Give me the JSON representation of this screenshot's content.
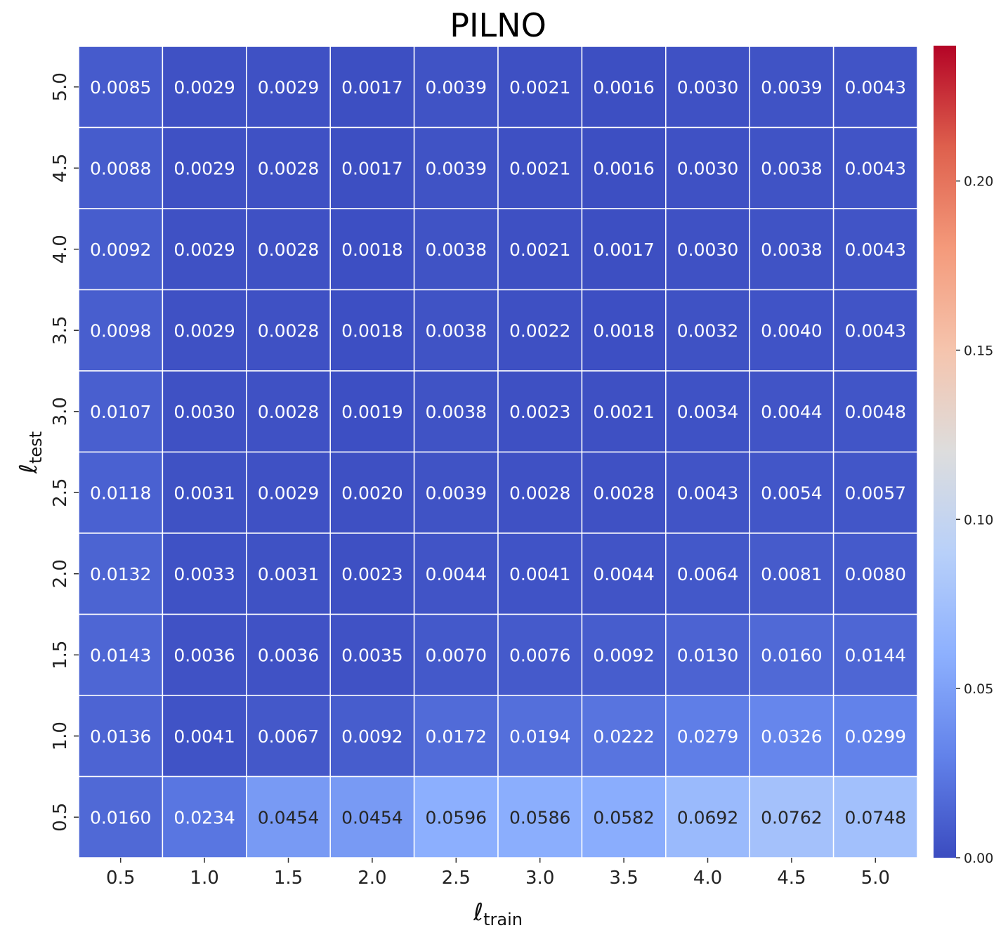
{
  "chart_data": {
    "type": "heatmap",
    "title": "PILNO",
    "xlabel": {
      "symbol": "ℓ",
      "subscript": "train"
    },
    "ylabel": {
      "symbol": "ℓ",
      "subscript": "test"
    },
    "x_categories": [
      "0.5",
      "1.0",
      "1.5",
      "2.0",
      "2.5",
      "3.0",
      "3.5",
      "4.0",
      "4.5",
      "5.0"
    ],
    "y_categories": [
      "5.0",
      "4.5",
      "4.0",
      "3.5",
      "3.0",
      "2.5",
      "2.0",
      "1.5",
      "1.0",
      "0.5"
    ],
    "values": [
      [
        0.0085,
        0.0029,
        0.0029,
        0.0017,
        0.0039,
        0.0021,
        0.0016,
        0.003,
        0.0039,
        0.0043
      ],
      [
        0.0088,
        0.0029,
        0.0028,
        0.0017,
        0.0039,
        0.0021,
        0.0016,
        0.003,
        0.0038,
        0.0043
      ],
      [
        0.0092,
        0.0029,
        0.0028,
        0.0018,
        0.0038,
        0.0021,
        0.0017,
        0.003,
        0.0038,
        0.0043
      ],
      [
        0.0098,
        0.0029,
        0.0028,
        0.0018,
        0.0038,
        0.0022,
        0.0018,
        0.0032,
        0.004,
        0.0043
      ],
      [
        0.0107,
        0.003,
        0.0028,
        0.0019,
        0.0038,
        0.0023,
        0.0021,
        0.0034,
        0.0044,
        0.0048
      ],
      [
        0.0118,
        0.0031,
        0.0029,
        0.002,
        0.0039,
        0.0028,
        0.0028,
        0.0043,
        0.0054,
        0.0057
      ],
      [
        0.0132,
        0.0033,
        0.0031,
        0.0023,
        0.0044,
        0.0041,
        0.0044,
        0.0064,
        0.0081,
        0.008
      ],
      [
        0.0143,
        0.0036,
        0.0036,
        0.0035,
        0.007,
        0.0076,
        0.0092,
        0.013,
        0.016,
        0.0144
      ],
      [
        0.0136,
        0.0041,
        0.0067,
        0.0092,
        0.0172,
        0.0194,
        0.0222,
        0.0279,
        0.0326,
        0.0299
      ],
      [
        0.016,
        0.0234,
        0.0454,
        0.0454,
        0.0596,
        0.0586,
        0.0582,
        0.0692,
        0.0762,
        0.0748
      ]
    ],
    "colormap": "coolwarm",
    "vmin": 0.0,
    "vmax": 0.24,
    "colorbar_ticks": [
      "0.00",
      "0.05",
      "0.10",
      "0.15",
      "0.20"
    ],
    "annotation_format": "4 decimals",
    "cell_border_color": "#ffffff"
  }
}
